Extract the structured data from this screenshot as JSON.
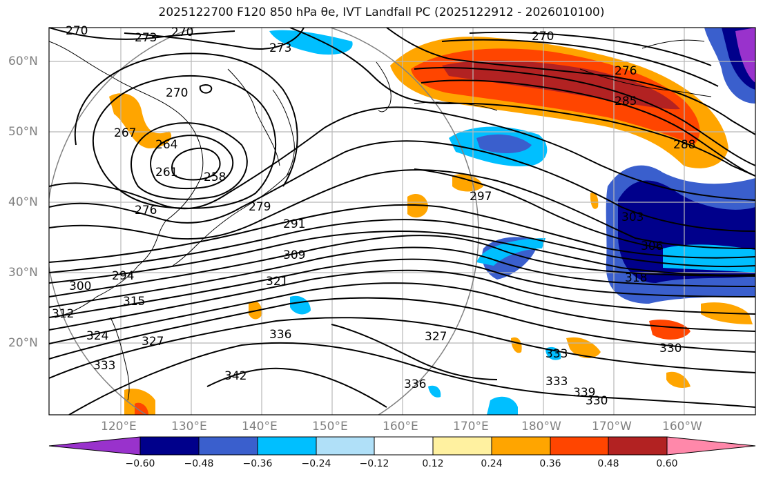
{
  "title": "2025122700 F120 850 hPa θe, IVT Landfall PC (2025122912 - 2026010100)",
  "lat_labels": [
    "60°N",
    "50°N",
    "40°N",
    "30°N",
    "20°N"
  ],
  "lon_labels": [
    "120°E",
    "130°E",
    "140°E",
    "150°E",
    "160°E",
    "170°E",
    "180°W",
    "170°W",
    "160°W"
  ],
  "colorbar": {
    "tick_labels": [
      "−0.60",
      "−0.48",
      "−0.36",
      "−0.24",
      "−0.12",
      "0.12",
      "0.24",
      "0.36",
      "0.48",
      "0.60"
    ],
    "colors": [
      "#9932cc",
      "#00008b",
      "#3a5fcd",
      "#00bfff",
      "#b0e0f8",
      "#ffffff",
      "#fff1a0",
      "#ffa500",
      "#ff4500",
      "#b22222",
      "#ff88aa"
    ]
  },
  "contour_labels": [
    "270",
    "273",
    "270",
    "273",
    "270",
    "276",
    "285",
    "288",
    "270",
    "267",
    "264",
    "261",
    "258",
    "276",
    "279",
    "291",
    "297",
    "303",
    "306",
    "318",
    "309",
    "321",
    "300",
    "294",
    "315",
    "312",
    "324",
    "327",
    "336",
    "327",
    "342",
    "333",
    "333",
    "333",
    "336",
    "339",
    "330",
    "330"
  ],
  "colors": {
    "contour": "#000000",
    "grid": "#b8b8b8",
    "circle": "#808080"
  }
}
